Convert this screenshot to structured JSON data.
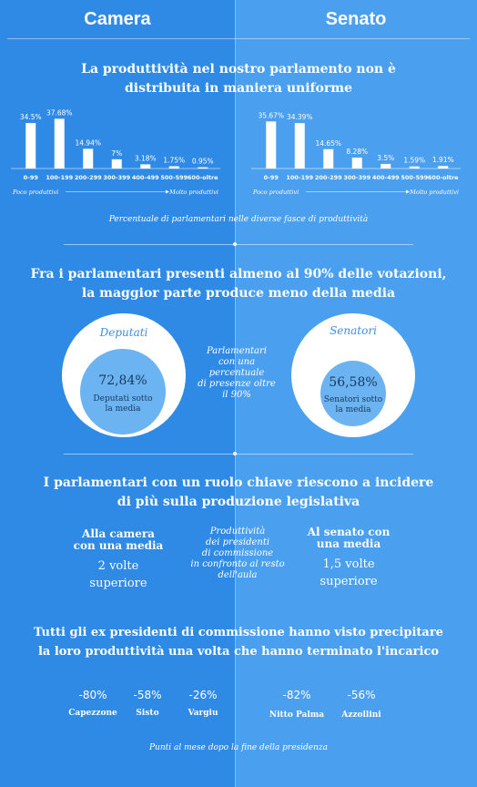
{
  "header": {
    "left": "Camera",
    "right": "Senato"
  },
  "section1": {
    "title_line1": "La produttività nel nostro parlamento non è",
    "title_line2": "distribuita in maniera uniforme",
    "caption": "Percentuale di parlamentari nelle diverse fasce di produttività"
  },
  "chart_data": [
    {
      "type": "bar",
      "categories": [
        "0-99",
        "100-199",
        "200-299",
        "300-399",
        "400-499",
        "500-599",
        "600-oltre"
      ],
      "values": [
        34.5,
        37.68,
        14.94,
        7,
        3.18,
        1.75,
        0.95
      ],
      "value_labels": [
        "34.5%",
        "37.68%",
        "14.94%",
        "7%",
        "3.18%",
        "1.75%",
        "0.95%"
      ],
      "axis_left_label": "Poco produttivi",
      "axis_right_label": "Molto produttivi",
      "ylim": [
        0,
        40
      ],
      "grid": false
    },
    {
      "type": "bar",
      "categories": [
        "0-99",
        "100-199",
        "200-299",
        "300-399",
        "400-499",
        "500-599",
        "600-oltre"
      ],
      "values": [
        35.67,
        34.39,
        14.65,
        8.28,
        3.5,
        1.59,
        1.91
      ],
      "value_labels": [
        "35.67%",
        "34.39%",
        "14.65%",
        "8.28%",
        "3.5%",
        "1.59%",
        "1.91%"
      ],
      "axis_left_label": "Poco produttivi",
      "axis_right_label": "Molto produttivi",
      "ylim": [
        0,
        40
      ],
      "grid": false
    }
  ],
  "section2": {
    "title_line1": "Fra i parlamentari presenti almeno al 90% delle votazioni,",
    "title_line2": "la maggior parte produce meno della media",
    "deputati": {
      "title": "Deputati",
      "value": "72,84%",
      "label_line1": "Deputati sotto",
      "label_line2": "la media",
      "share": 0.7284
    },
    "senatori": {
      "title": "Senatori",
      "value": "56,58%",
      "label_line1": "Senatori sotto",
      "label_line2": "la media",
      "share": 0.5658
    },
    "middle_note": [
      "Parlamentari",
      "con una",
      "percentuale",
      "di presenze oltre",
      "il 90%"
    ]
  },
  "section3": {
    "title_line1": "I parlamentari con un ruolo chiave riescono a incidere",
    "title_line2": "di più sulla produzione legislativa",
    "left_heading": [
      "Alla camera",
      "con una media"
    ],
    "left_value": [
      "2 volte",
      "superiore"
    ],
    "right_heading": [
      "Al senato con",
      "una media"
    ],
    "right_value": [
      "1,5 volte",
      "superiore"
    ],
    "middle_note": [
      "Produttività",
      "dei presidenti",
      "di commissione",
      "in confronto al resto",
      "dell'aula"
    ]
  },
  "section4": {
    "title_line1": "Tutti gli ex presidenti di commissione hanno visto precipitare",
    "title_line2": "la loro produttività una volta che hanno terminato l'incarico",
    "camera": [
      {
        "value": "-80%",
        "name": "Capezzone"
      },
      {
        "value": "-58%",
        "name": "Sisto"
      },
      {
        "value": "-26%",
        "name": "Vargiu"
      }
    ],
    "senato": [
      {
        "value": "-82%",
        "name": "Nitto Palma"
      },
      {
        "value": "-56%",
        "name": "Azzollini"
      }
    ],
    "caption": "Punti al mese dopo la fine della presidenza"
  },
  "colors": {
    "left_bg": "#2f8ae6",
    "right_bg": "#4a9fee",
    "circle_inner": "#6cb4f1",
    "dark_text": "#17375e"
  }
}
